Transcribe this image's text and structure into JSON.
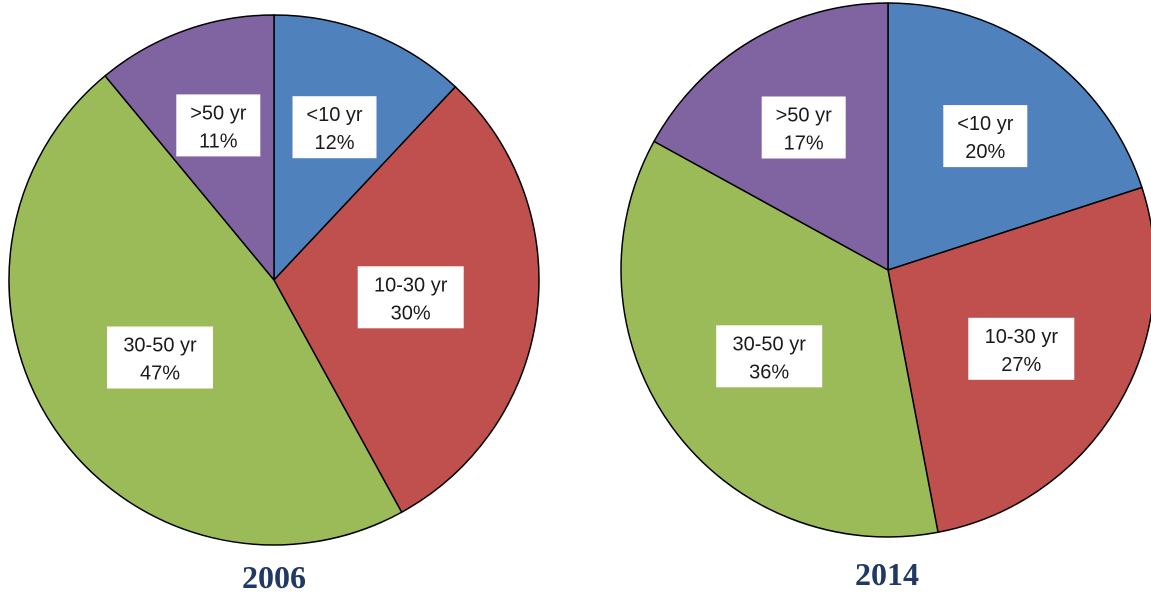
{
  "chart_data": [
    {
      "type": "pie",
      "title": "2006",
      "slices": [
        {
          "label": "<10 yr",
          "value": 12,
          "pct_label": "12%",
          "color": "#4f81bd"
        },
        {
          "label": "10-30 yr",
          "value": 30,
          "pct_label": "30%",
          "color": "#c0504d"
        },
        {
          "label": "30-50 yr",
          "value": 47,
          "pct_label": "47%",
          "color": "#9bbb59"
        },
        {
          "label": ">50 yr",
          "value": 11,
          "pct_label": "11%",
          "color": "#8064a2"
        }
      ]
    },
    {
      "type": "pie",
      "title": "2014",
      "slices": [
        {
          "label": "<10 yr",
          "value": 20,
          "pct_label": "20%",
          "color": "#4f81bd"
        },
        {
          "label": "10-30 yr",
          "value": 27,
          "pct_label": "27%",
          "color": "#c0504d"
        },
        {
          "label": "30-50 yr",
          "value": 36,
          "pct_label": "36%",
          "color": "#9bbb59"
        },
        {
          "label": ">50 yr",
          "value": 17,
          "pct_label": "17%",
          "color": "#8064a2"
        }
      ]
    }
  ]
}
